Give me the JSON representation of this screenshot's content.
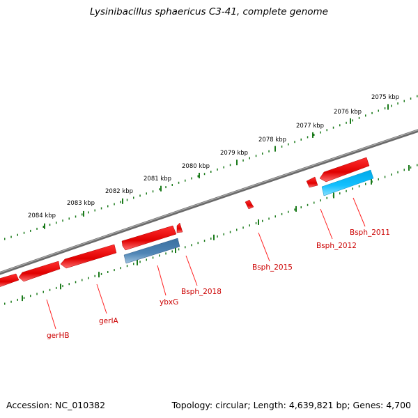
{
  "title": "Lysinibacillus sphaericus C3-41, complete genome",
  "footer": {
    "accession": "Accession: NC_010382",
    "summary": "Topology: circular; Length: 4,639,821 bp; Genes: 4,700"
  },
  "scale_labels": [
    "2084 kbp",
    "2083 kbp",
    "2082 kbp",
    "2081 kbp",
    "2080 kbp",
    "2079 kbp",
    "2078 kbp",
    "2077 kbp",
    "2076 kbp",
    "2075 kbp"
  ],
  "gene_labels": [
    "gerHB",
    "gerIA",
    "ybxG",
    "Bsph_2018",
    "Bsph_2015",
    "Bsph_2012",
    "Bsph_2011"
  ],
  "colors": {
    "backbone": "#808080",
    "forward_gene": "#ff0000",
    "reverse_gene_dark": "#4a7fb0",
    "reverse_gene_light": "#00b8f0",
    "tick": "#1a7a1a",
    "label": "#cc0000"
  }
}
